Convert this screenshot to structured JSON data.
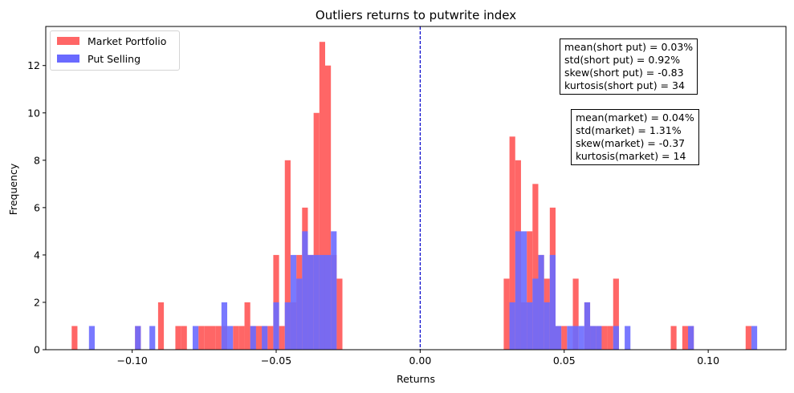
{
  "chart_data": {
    "type": "bar",
    "title": "Outliers returns to putwrite index",
    "xlabel": "Returns",
    "ylabel": "Frequency",
    "xlim": [
      -0.13,
      0.127
    ],
    "ylim": [
      0,
      13.65
    ],
    "bin_width": 0.002,
    "x_ticks": [
      -0.1,
      -0.05,
      0.0,
      0.05,
      0.1
    ],
    "x_tick_labels": [
      "−0.10",
      "−0.05",
      "0.00",
      "0.05",
      "0.10"
    ],
    "y_ticks": [
      0,
      2,
      4,
      6,
      8,
      10,
      12
    ],
    "y_tick_labels": [
      "0",
      "2",
      "4",
      "6",
      "8",
      "10",
      "12"
    ],
    "vline_x": 0.0,
    "vline_color": "#0000cc",
    "legend_placement": "upper-left",
    "series": [
      {
        "name": "Market Portfolio",
        "color": "#ff6666",
        "bins": [
          [
            -0.12,
            1
          ],
          [
            -0.098,
            1
          ],
          [
            -0.09,
            2
          ],
          [
            -0.084,
            1
          ],
          [
            -0.082,
            1
          ],
          [
            -0.076,
            1
          ],
          [
            -0.074,
            1
          ],
          [
            -0.072,
            1
          ],
          [
            -0.07,
            1
          ],
          [
            -0.068,
            1
          ],
          [
            -0.064,
            1
          ],
          [
            -0.062,
            1
          ],
          [
            -0.06,
            2
          ],
          [
            -0.058,
            1
          ],
          [
            -0.056,
            1
          ],
          [
            -0.054,
            1
          ],
          [
            -0.052,
            1
          ],
          [
            -0.05,
            4
          ],
          [
            -0.048,
            1
          ],
          [
            -0.046,
            8
          ],
          [
            -0.044,
            2
          ],
          [
            -0.042,
            4
          ],
          [
            -0.04,
            6
          ],
          [
            -0.038,
            4
          ],
          [
            -0.036,
            10
          ],
          [
            -0.034,
            13
          ],
          [
            -0.032,
            12
          ],
          [
            -0.03,
            4
          ],
          [
            -0.028,
            3
          ],
          [
            0.03,
            3
          ],
          [
            0.032,
            9
          ],
          [
            0.034,
            8
          ],
          [
            0.036,
            2
          ],
          [
            0.038,
            5
          ],
          [
            0.04,
            7
          ],
          [
            0.042,
            4
          ],
          [
            0.044,
            3
          ],
          [
            0.046,
            6
          ],
          [
            0.048,
            1
          ],
          [
            0.05,
            1
          ],
          [
            0.054,
            3
          ],
          [
            0.058,
            2
          ],
          [
            0.06,
            1
          ],
          [
            0.062,
            1
          ],
          [
            0.064,
            1
          ],
          [
            0.066,
            1
          ],
          [
            0.068,
            3
          ],
          [
            0.088,
            1
          ],
          [
            0.092,
            1
          ],
          [
            0.094,
            1
          ],
          [
            0.114,
            1
          ]
        ]
      },
      {
        "name": "Put Selling",
        "color": "#6a6aff",
        "bins": [
          [
            -0.114,
            1
          ],
          [
            -0.098,
            1
          ],
          [
            -0.093,
            1
          ],
          [
            -0.078,
            1
          ],
          [
            -0.068,
            2
          ],
          [
            -0.066,
            1
          ],
          [
            -0.058,
            1
          ],
          [
            -0.054,
            1
          ],
          [
            -0.05,
            2
          ],
          [
            -0.046,
            2
          ],
          [
            -0.044,
            4
          ],
          [
            -0.042,
            3
          ],
          [
            -0.04,
            5
          ],
          [
            -0.038,
            4
          ],
          [
            -0.036,
            4
          ],
          [
            -0.034,
            4
          ],
          [
            -0.032,
            4
          ],
          [
            -0.03,
            5
          ],
          [
            0.032,
            2
          ],
          [
            0.034,
            5
          ],
          [
            0.036,
            5
          ],
          [
            0.038,
            2
          ],
          [
            0.04,
            3
          ],
          [
            0.042,
            4
          ],
          [
            0.044,
            2
          ],
          [
            0.046,
            4
          ],
          [
            0.048,
            1
          ],
          [
            0.052,
            1
          ],
          [
            0.054,
            1
          ],
          [
            0.056,
            1
          ],
          [
            0.058,
            2
          ],
          [
            0.06,
            1
          ],
          [
            0.062,
            1
          ],
          [
            0.068,
            1
          ],
          [
            0.072,
            1
          ],
          [
            0.094,
            1
          ],
          [
            0.116,
            1
          ]
        ]
      }
    ],
    "annotations": [
      [
        "mean(short put) = 0.03%",
        "std(short put) = 0.92%",
        "skew(short put) = -0.83",
        "kurtosis(short put) = 34"
      ],
      [
        "mean(market) = 0.04%",
        "std(market) = 1.31%",
        "skew(market) = -0.37",
        "kurtosis(market) = 14"
      ]
    ]
  },
  "legend": {
    "items": [
      {
        "label": "Market Portfolio",
        "color": "#ff6666"
      },
      {
        "label": "Put Selling",
        "color": "#6a6aff"
      }
    ]
  },
  "stats": {
    "short_put": {
      "mean": "mean(short put) = 0.03%",
      "std": "std(short put) = 0.92%",
      "skew": "skew(short put) = -0.83",
      "kurtosis": "kurtosis(short put) = 34"
    },
    "market": {
      "mean": "mean(market) = 0.04%",
      "std": "std(market) = 1.31%",
      "skew": "skew(market) = -0.37",
      "kurtosis": "kurtosis(market) = 14"
    }
  }
}
